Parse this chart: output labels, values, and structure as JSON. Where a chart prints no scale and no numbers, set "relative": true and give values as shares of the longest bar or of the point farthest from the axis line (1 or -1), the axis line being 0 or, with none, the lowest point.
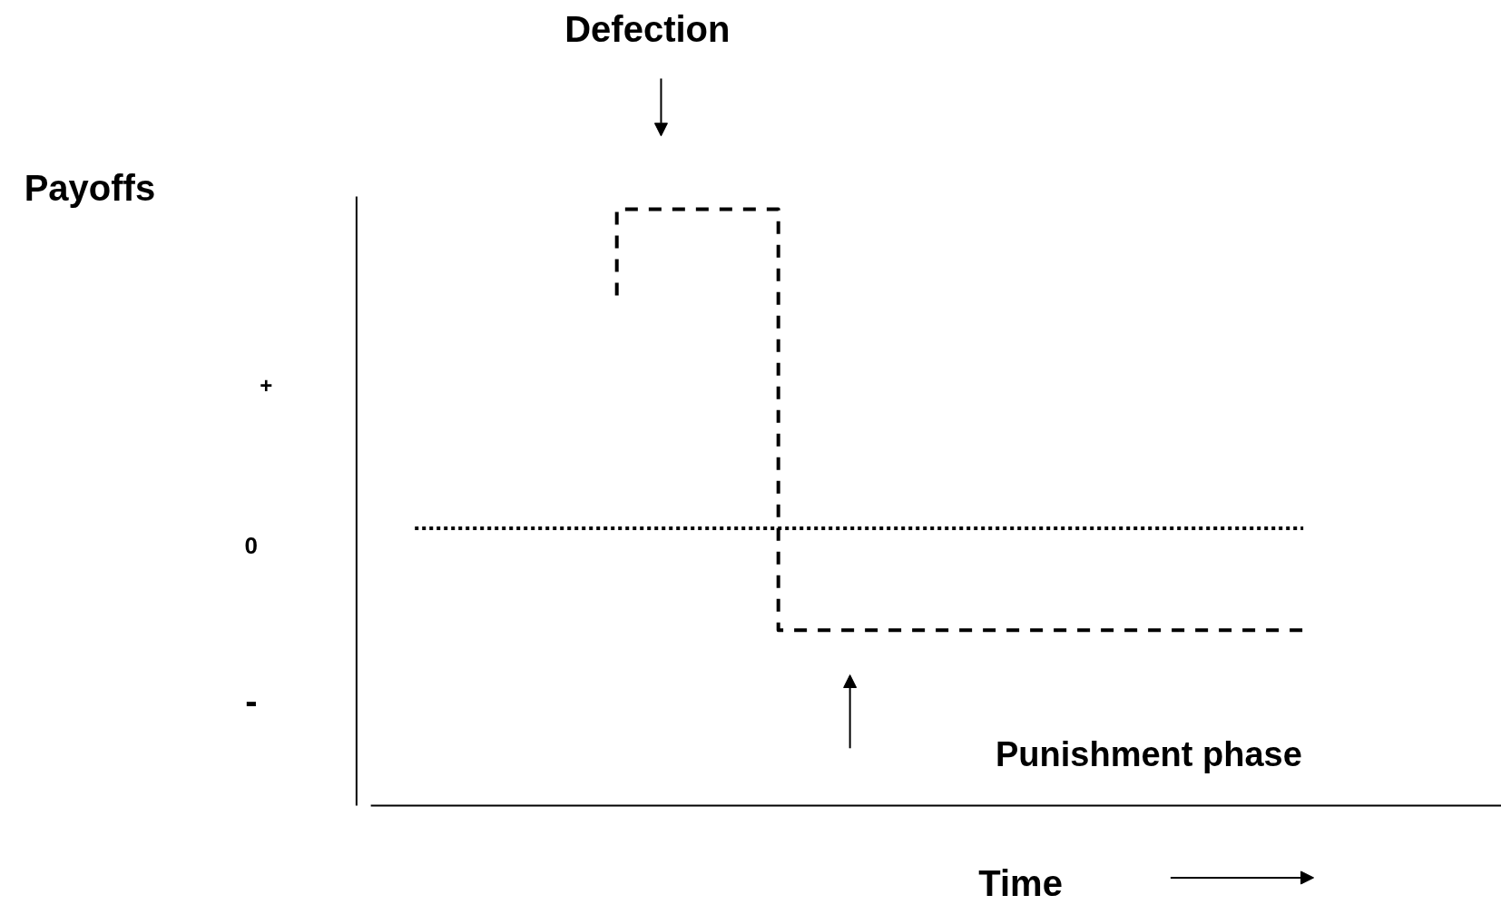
{
  "chart_data": {
    "type": "step",
    "relative": true,
    "categories": [
      null,
      null,
      null,
      null,
      null,
      null,
      null,
      null,
      null,
      null,
      null,
      null,
      null,
      null,
      null,
      null,
      null,
      null,
      null,
      null,
      null,
      null,
      null
    ],
    "marker": "none",
    "series": [
      {
        "color": "#000000",
        "line_style": "dashed",
        "values": [
          null,
          null,
          null,
          null,
          null,
          0.73,
          1,
          1,
          1,
          1,
          -0.32,
          -0.32,
          -0.32,
          -0.32,
          -0.32,
          -0.32,
          -0.32,
          -0.32,
          -0.32,
          -0.32,
          -0.32,
          -0.32,
          -0.32
        ]
      }
    ],
    "ref_lines": [
      {
        "axis": "y",
        "value": 0,
        "label": "0",
        "color": "#000000",
        "line_style": "dotted"
      }
    ],
    "annotations": [
      "Defection",
      "Punishment phase",
      "+",
      "-",
      "Payoffs",
      "Time"
    ]
  }
}
